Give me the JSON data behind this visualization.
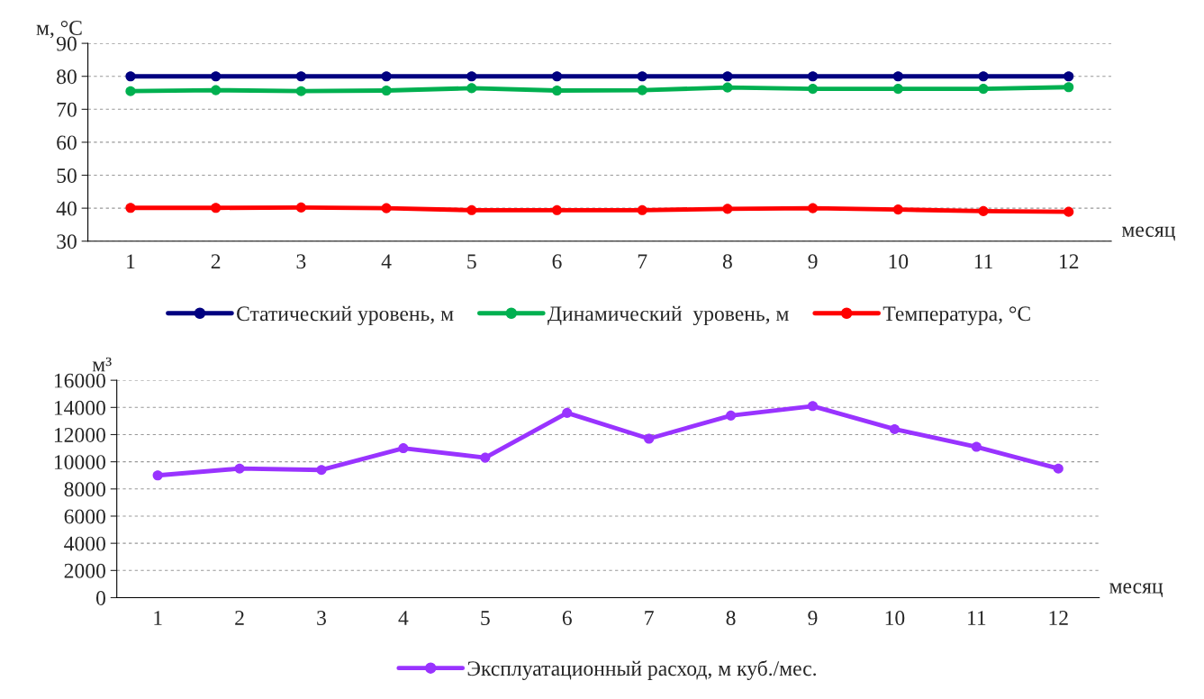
{
  "chart_data": [
    {
      "type": "line",
      "ylabel": "м, °C",
      "xlabel": "месяц",
      "categories": [
        "1",
        "2",
        "3",
        "4",
        "5",
        "6",
        "7",
        "8",
        "9",
        "10",
        "11",
        "12"
      ],
      "ylim": [
        30,
        90
      ],
      "yticks": [
        30,
        40,
        50,
        60,
        70,
        80,
        90
      ],
      "grid": "y",
      "legend": "bottom",
      "marker": "circle",
      "line_style": "solid",
      "series": [
        {
          "name": "Статический уровень, м",
          "color": "#000080",
          "values": [
            80,
            80,
            80,
            80,
            80,
            80,
            80,
            80,
            80,
            80,
            80,
            80
          ]
        },
        {
          "name": "Динамический  уровень, м",
          "color": "#00b050",
          "values": [
            75.5,
            75.8,
            75.5,
            75.7,
            76.4,
            75.7,
            75.8,
            76.6,
            76.2,
            76.2,
            76.2,
            76.7
          ]
        },
        {
          "name": "Температура, °C",
          "color": "#ff0000",
          "values": [
            40.1,
            40.1,
            40.2,
            40.0,
            39.4,
            39.4,
            39.4,
            39.8,
            40.0,
            39.6,
            39.1,
            38.9
          ]
        }
      ]
    },
    {
      "type": "line",
      "ylabel": "м³",
      "xlabel": "месяц",
      "categories": [
        "1",
        "2",
        "3",
        "4",
        "5",
        "6",
        "7",
        "8",
        "9",
        "10",
        "11",
        "12"
      ],
      "ylim": [
        0,
        16000
      ],
      "yticks": [
        0,
        2000,
        4000,
        6000,
        8000,
        10000,
        12000,
        14000,
        16000
      ],
      "grid": "y",
      "legend": "bottom",
      "marker": "circle",
      "line_style": "solid",
      "series": [
        {
          "name": "Эксплуатационный расход, м куб./мес.",
          "color": "#9933ff",
          "values": [
            9000,
            9500,
            9400,
            11000,
            10300,
            13600,
            11700,
            13400,
            14100,
            12400,
            11100,
            9500
          ]
        }
      ]
    }
  ]
}
